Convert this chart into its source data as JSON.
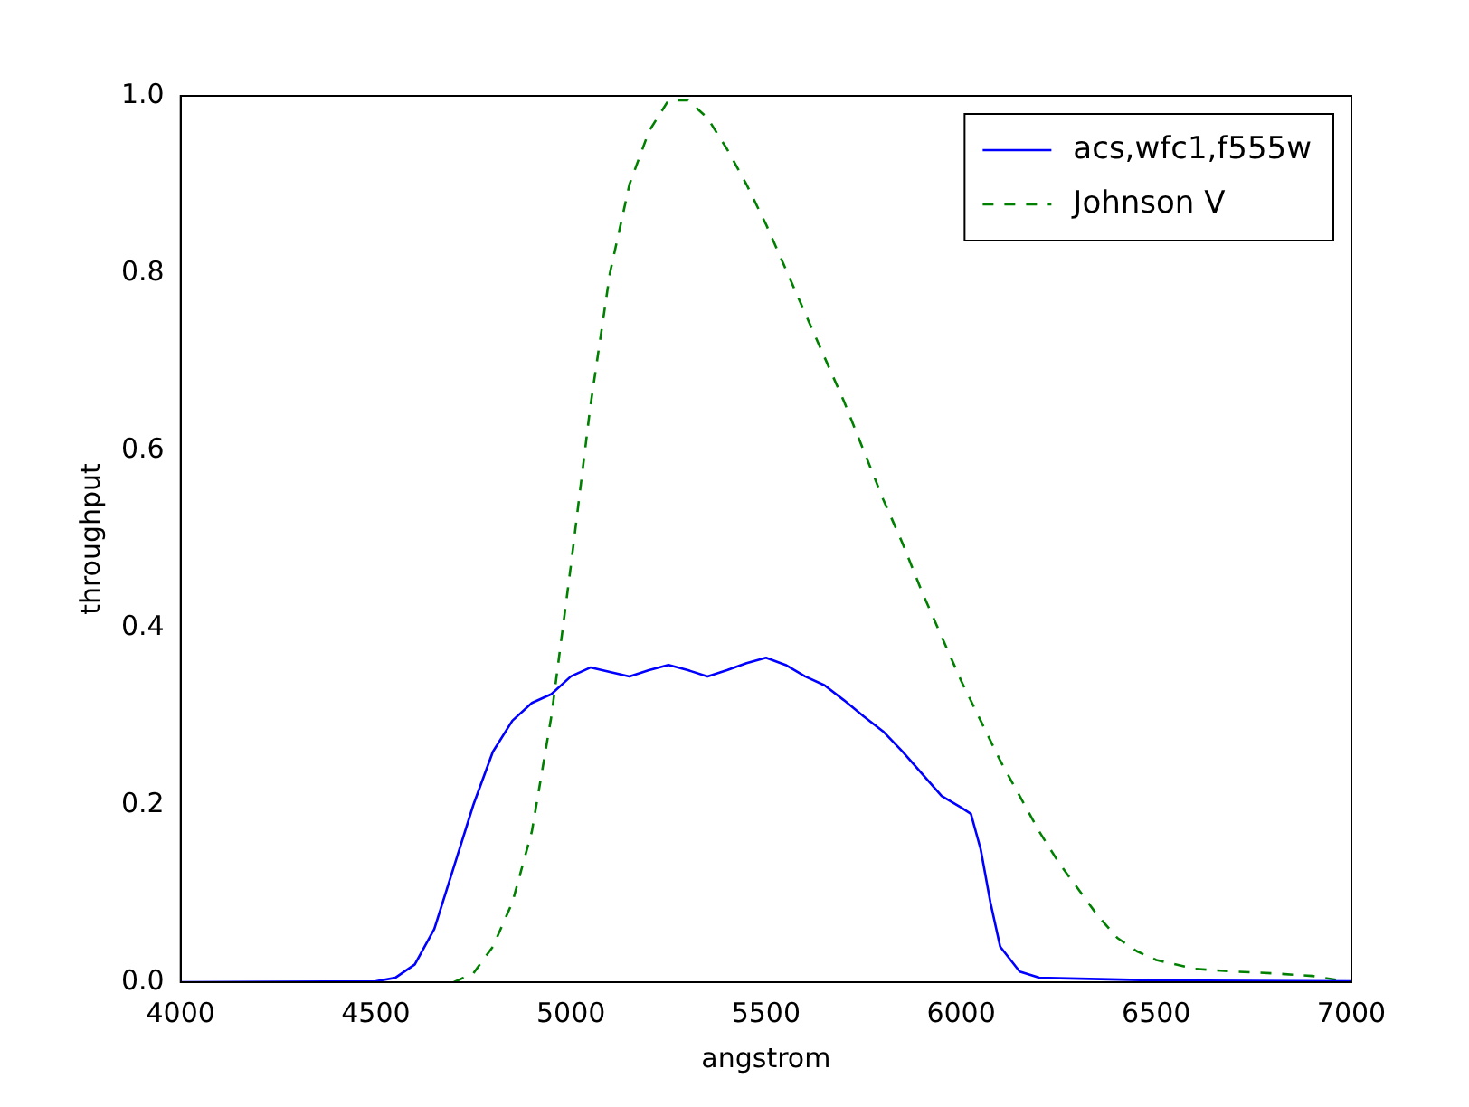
{
  "chart_data": {
    "type": "line",
    "xlabel": "angstrom",
    "ylabel": "throughput",
    "xlim": [
      4000,
      7000
    ],
    "xticks": [
      4000,
      4500,
      5000,
      5500,
      6000,
      6500,
      7000
    ],
    "ylim": [
      0,
      1.0
    ],
    "yticks": [
      {
        "value": 0,
        "label": "0.0"
      },
      {
        "value": 0.2,
        "label": "0.2"
      },
      {
        "value": 0.4,
        "label": "0.4"
      },
      {
        "value": 0.6,
        "label": "0.6"
      },
      {
        "value": 0.8,
        "label": "0.8"
      },
      {
        "value": 1.0,
        "label": "1.0"
      }
    ],
    "legend": "top right",
    "marker": "none",
    "series": [
      {
        "name": "acs,wfc1,f555w",
        "color": "#0000ff",
        "line_style": "solid",
        "x": [
          4000,
          4500,
          4550,
          4600,
          4650,
          4700,
          4750,
          4800,
          4850,
          4900,
          4950,
          5000,
          5050,
          5100,
          5150,
          5200,
          5250,
          5300,
          5350,
          5400,
          5450,
          5500,
          5550,
          5600,
          5650,
          5700,
          5750,
          5800,
          5850,
          5900,
          5950,
          6000,
          6025,
          6050,
          6075,
          6100,
          6150,
          6200,
          6500,
          7000
        ],
        "values": [
          0,
          0.001,
          0.005,
          0.02,
          0.06,
          0.13,
          0.2,
          0.26,
          0.295,
          0.315,
          0.325,
          0.345,
          0.355,
          0.35,
          0.345,
          0.352,
          0.358,
          0.352,
          0.345,
          0.352,
          0.36,
          0.366,
          0.358,
          0.345,
          0.335,
          0.318,
          0.3,
          0.283,
          0.26,
          0.235,
          0.21,
          0.197,
          0.19,
          0.15,
          0.09,
          0.04,
          0.012,
          0.005,
          0.002,
          0.001
        ]
      },
      {
        "name": "Johnson V",
        "color": "#008000",
        "line_style": "dashed",
        "x": [
          4700,
          4750,
          4800,
          4850,
          4900,
          4950,
          5000,
          5050,
          5100,
          5150,
          5200,
          5250,
          5300,
          5350,
          5400,
          5450,
          5500,
          5550,
          5600,
          5650,
          5700,
          5750,
          5800,
          5850,
          5900,
          5950,
          6000,
          6050,
          6100,
          6150,
          6200,
          6250,
          6300,
          6350,
          6400,
          6450,
          6500,
          6600,
          6700,
          6800,
          6900,
          7000
        ],
        "values": [
          0,
          0.01,
          0.04,
          0.09,
          0.17,
          0.3,
          0.47,
          0.65,
          0.8,
          0.9,
          0.96,
          0.995,
          0.995,
          0.975,
          0.94,
          0.9,
          0.855,
          0.805,
          0.755,
          0.705,
          0.655,
          0.6,
          0.545,
          0.495,
          0.44,
          0.39,
          0.34,
          0.295,
          0.25,
          0.21,
          0.17,
          0.135,
          0.105,
          0.075,
          0.05,
          0.035,
          0.025,
          0.015,
          0.012,
          0.01,
          0.007,
          0
        ]
      }
    ]
  }
}
